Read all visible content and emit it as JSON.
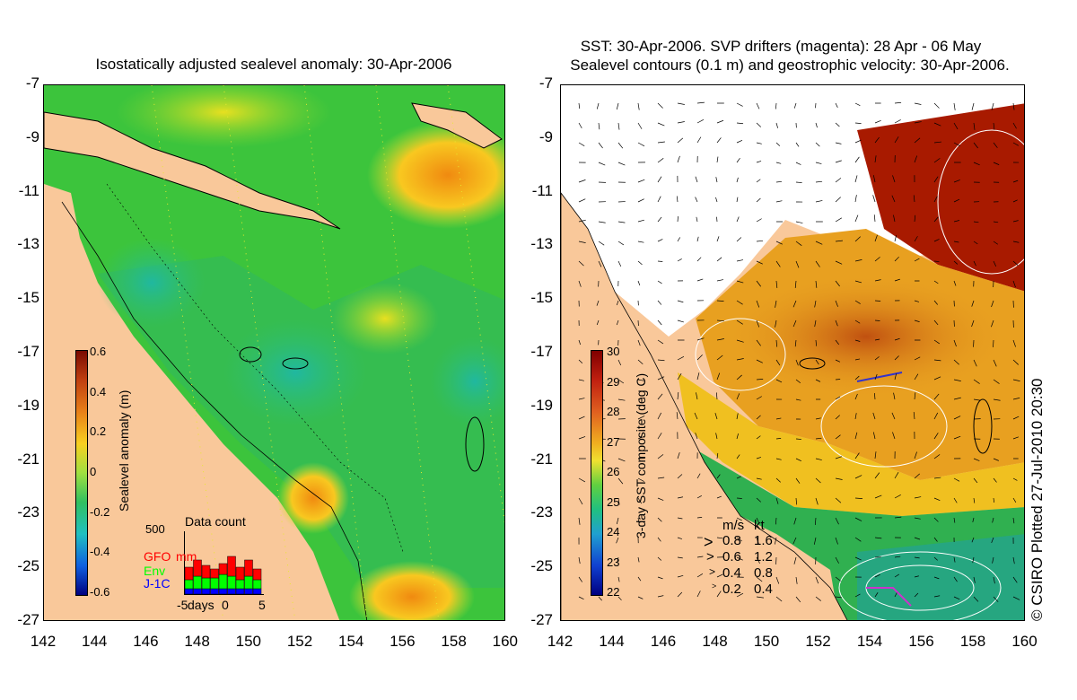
{
  "left_panel": {
    "title": "Isostatically adjusted sealevel anomaly: 30-Apr-2006",
    "colorbar": {
      "label": "Sealevel anomaly (m)",
      "ticks": [
        "0.6",
        "0.4",
        "0.2",
        "0",
        "-0.2",
        "-0.4",
        "-0.6"
      ],
      "min": -0.6,
      "max": 0.6
    },
    "data_count": {
      "title": "Data count",
      "ymax_label": "500",
      "series": [
        {
          "name": "GFO",
          "color": "#ff0000"
        },
        {
          "name": "Env",
          "color": "#00ff00"
        },
        {
          "name": "J-1C",
          "color": "#0000ff"
        }
      ],
      "extra_label": "mm",
      "x_ticks": [
        "-5",
        "0",
        "5"
      ],
      "x_label": "days"
    }
  },
  "right_panel": {
    "title_line1": "SST: 30-Apr-2006. SVP drifters (magenta): 28 Apr - 06 May",
    "title_line2": "Sealevel contours (0.1 m) and geostrophic velocity: 30-Apr-2006.",
    "colorbar": {
      "label": "3-day SST composite (deg C)",
      "ticks": [
        "30",
        "29",
        "28",
        "27",
        "26",
        "25",
        "24",
        "23",
        "22"
      ],
      "min": 22,
      "max": 30
    },
    "velocity_legend": {
      "header_ms": "m/s",
      "header_kt": "kt",
      "rows": [
        {
          "ms": "0.8",
          "kt": "1.6"
        },
        {
          "ms": "0.6",
          "kt": "1.2"
        },
        {
          "ms": "0.4",
          "kt": "0.8"
        },
        {
          "ms": "0.2",
          "kt": "0.4"
        }
      ]
    }
  },
  "axes": {
    "y_ticks": [
      "-7",
      "-9",
      "-11",
      "-13",
      "-15",
      "-17",
      "-19",
      "-21",
      "-23",
      "-25",
      "-27"
    ],
    "x_ticks": [
      "142",
      "144",
      "146",
      "148",
      "150",
      "152",
      "154",
      "156",
      "158",
      "160"
    ]
  },
  "credit": "© CSIRO Plotted 27-Jul-2010 20:30",
  "colors": {
    "land": "#f9c89a",
    "sea_green": "#3cc43c",
    "warm_orange": "#e8a020",
    "sst_red": "#a81a00"
  }
}
